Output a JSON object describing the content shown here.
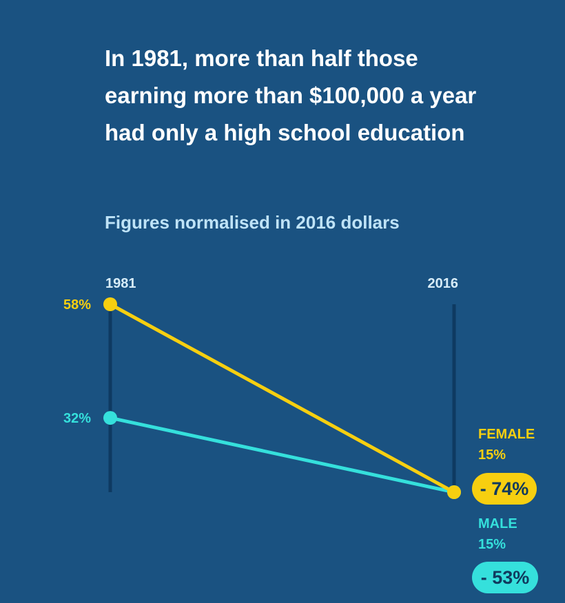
{
  "header": {
    "title": "In 1981, more than half those earning more than $100,000 a year had only a high school education",
    "subtitle": "Figures normalised in 2016 dollars"
  },
  "colors": {
    "background": "#1a5281",
    "female": "#f7cf10",
    "male": "#35e0dc",
    "axis": "#0e3a61",
    "year_label": "#d7ecf8"
  },
  "chart_data": {
    "type": "line",
    "x": [
      "1981",
      "2016"
    ],
    "series": [
      {
        "name": "FEMALE",
        "values": [
          58,
          15
        ],
        "value_labels": [
          "58%",
          "15%"
        ],
        "change": "- 74%"
      },
      {
        "name": "MALE",
        "values": [
          32,
          15
        ],
        "value_labels": [
          "32%",
          "15%"
        ],
        "change": "- 53%"
      }
    ],
    "ylim": [
      15,
      58
    ],
    "grid": false,
    "legend": "right"
  }
}
